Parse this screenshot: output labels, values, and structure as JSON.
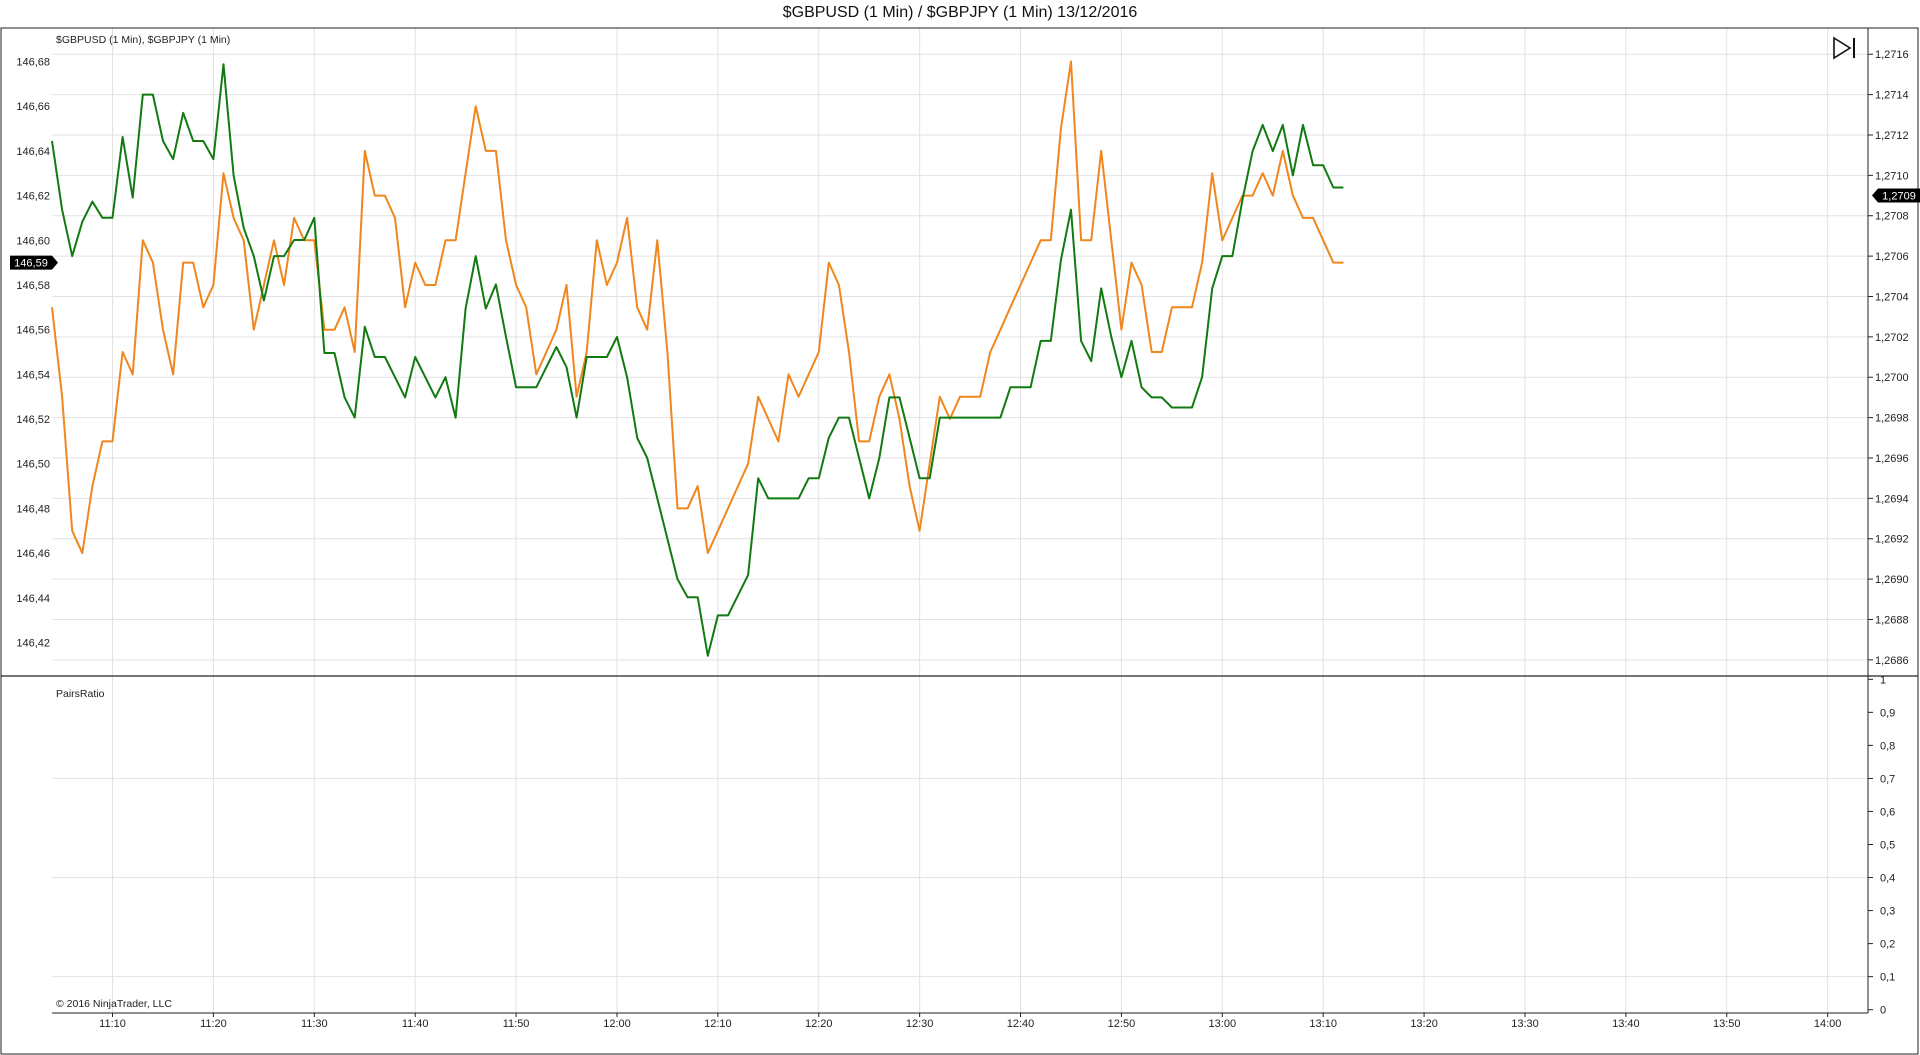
{
  "window": {
    "title": "$GBPUSD (1 Min) / $GBPJPY (1 Min)  13/12/2016"
  },
  "price_panel": {
    "label": "$GBPUSD (1 Min), $GBPJPY (1 Min)",
    "left_badge": "146,59",
    "right_badge": "1,2709",
    "icon": "scroll-to-end-icon"
  },
  "ratio_panel": {
    "label": "PairsRatio"
  },
  "copyright": "© 2016 NinjaTrader, LLC",
  "colors": {
    "gbpusd": "#117a11",
    "gbpjpy": "#f0861e",
    "badge_bg": "#000000",
    "grid": "#e2e2e2"
  },
  "chart_data": [
    {
      "type": "line",
      "title": "$GBPUSD (1 Min) / $GBPJPY (1 Min)  13/12/2016",
      "x_ticks": [
        "11:10",
        "11:20",
        "11:30",
        "11:40",
        "11:50",
        "12:00",
        "12:10",
        "12:20",
        "12:30",
        "12:40",
        "12:50",
        "13:00",
        "13:10",
        "13:20",
        "13:30",
        "13:40",
        "13:50",
        "14:00"
      ],
      "x_range": [
        "11:04",
        "14:04"
      ],
      "left_axis": {
        "ticks": [
          "146,42",
          "146,44",
          "146,46",
          "146,48",
          "146,50",
          "146,52",
          "146,54",
          "146,56",
          "146,58",
          "146,60",
          "146,62",
          "146,64",
          "146,66",
          "146,68"
        ],
        "range": [
          146.405,
          146.695
        ]
      },
      "right_axis": {
        "ticks": [
          "1,2686",
          "1,2688",
          "1,2690",
          "1,2692",
          "1,2694",
          "1,2696",
          "1,2698",
          "1,2700",
          "1,2702",
          "1,2704",
          "1,2706",
          "1,2708",
          "1,2710",
          "1,2712",
          "1,2714",
          "1,2716"
        ],
        "range": [
          1.26852,
          1.27173
        ]
      },
      "grid": true,
      "series": [
        {
          "name": "$GBPUSD (1 Min)",
          "axis": "right",
          "color": "#117a11",
          "x": [
            "11:04",
            "11:05",
            "11:06",
            "11:07",
            "11:08",
            "11:09",
            "11:10",
            "11:11",
            "11:12",
            "11:13",
            "11:14",
            "11:15",
            "11:16",
            "11:17",
            "11:18",
            "11:19",
            "11:20",
            "11:21",
            "11:22",
            "11:23",
            "11:24",
            "11:25",
            "11:26",
            "11:27",
            "11:28",
            "11:29",
            "11:30",
            "11:31",
            "11:32",
            "11:33",
            "11:34",
            "11:35",
            "11:36",
            "11:37",
            "11:38",
            "11:39",
            "11:40",
            "11:41",
            "11:42",
            "11:43",
            "11:44",
            "11:45",
            "11:46",
            "11:47",
            "11:48",
            "11:49",
            "11:50",
            "11:51",
            "11:52",
            "11:53",
            "11:54",
            "11:55",
            "11:56",
            "11:57",
            "11:58",
            "11:59",
            "12:00",
            "12:01",
            "12:02",
            "12:03",
            "12:04",
            "12:05",
            "12:06",
            "12:07",
            "12:08",
            "12:09",
            "12:10",
            "12:11",
            "12:12",
            "12:13",
            "12:14",
            "12:15",
            "12:16",
            "12:17",
            "12:18",
            "12:19",
            "12:20",
            "12:21",
            "12:22",
            "12:23",
            "12:24",
            "12:25",
            "12:26",
            "12:27",
            "12:28",
            "12:29",
            "12:30",
            "12:31",
            "12:32",
            "12:33",
            "12:34",
            "12:35",
            "12:36",
            "12:37",
            "12:38",
            "12:39",
            "12:40",
            "12:41",
            "12:42",
            "12:43",
            "12:44",
            "12:45",
            "12:46",
            "12:47",
            "12:48",
            "12:49",
            "12:50",
            "12:51",
            "12:52",
            "12:53",
            "12:54",
            "12:55",
            "12:56",
            "12:57",
            "12:58",
            "12:59",
            "13:00",
            "13:01",
            "13:02",
            "13:03",
            "13:04",
            "13:05",
            "13:06",
            "13:07",
            "13:08",
            "13:09",
            "13:10",
            "13:11",
            "13:12"
          ],
          "values": [
            1.27117,
            1.27083,
            1.2706,
            1.27077,
            1.27087,
            1.27079,
            1.27079,
            1.27119,
            1.27089,
            1.2714,
            1.2714,
            1.27117,
            1.27108,
            1.27131,
            1.27117,
            1.27117,
            1.27108,
            1.27155,
            1.271,
            1.27074,
            1.2706,
            1.27038,
            1.2706,
            1.2706,
            1.27068,
            1.27068,
            1.27079,
            1.27012,
            1.27012,
            1.2699,
            1.2698,
            1.27025,
            1.2701,
            1.2701,
            1.27,
            1.2699,
            1.2701,
            1.27,
            1.2699,
            1.27,
            1.2698,
            1.27034,
            1.2706,
            1.27034,
            1.27046,
            1.2702,
            1.26995,
            1.26995,
            1.26995,
            1.27005,
            1.27015,
            1.27005,
            1.2698,
            1.2701,
            1.2701,
            1.2701,
            1.2702,
            1.27,
            1.2697,
            1.2696,
            1.2694,
            1.2692,
            1.269,
            1.26891,
            1.26891,
            1.26862,
            1.26882,
            1.26882,
            1.26892,
            1.26902,
            1.2695,
            1.2694,
            1.2694,
            1.2694,
            1.2694,
            1.2695,
            1.2695,
            1.2697,
            1.2698,
            1.2698,
            1.2696,
            1.2694,
            1.2696,
            1.2699,
            1.2699,
            1.2697,
            1.2695,
            1.2695,
            1.2698,
            1.2698,
            1.2698,
            1.2698,
            1.2698,
            1.2698,
            1.2698,
            1.26995,
            1.26995,
            1.26995,
            1.27018,
            1.27018,
            1.27058,
            1.27083,
            1.27018,
            1.27008,
            1.27044,
            1.2702,
            1.27,
            1.27018,
            1.26995,
            1.2699,
            1.2699,
            1.26985,
            1.26985,
            1.26985,
            1.27,
            1.27044,
            1.2706,
            1.2706,
            1.27088,
            1.27112,
            1.27125,
            1.27112,
            1.27125,
            1.271,
            1.27125,
            1.27105,
            1.27105,
            1.27094,
            1.27094
          ]
        },
        {
          "name": "$GBPJPY (1 Min)",
          "axis": "left",
          "color": "#f0861e",
          "x": [
            "11:04",
            "11:05",
            "11:06",
            "11:07",
            "11:08",
            "11:09",
            "11:10",
            "11:11",
            "11:12",
            "11:13",
            "11:14",
            "11:15",
            "11:16",
            "11:17",
            "11:18",
            "11:19",
            "11:20",
            "11:21",
            "11:22",
            "11:23",
            "11:24",
            "11:25",
            "11:26",
            "11:27",
            "11:28",
            "11:29",
            "11:30",
            "11:31",
            "11:32",
            "11:33",
            "11:34",
            "11:35",
            "11:36",
            "11:37",
            "11:38",
            "11:39",
            "11:40",
            "11:41",
            "11:42",
            "11:43",
            "11:44",
            "11:45",
            "11:46",
            "11:47",
            "11:48",
            "11:49",
            "11:50",
            "11:51",
            "11:52",
            "11:53",
            "11:54",
            "11:55",
            "11:56",
            "11:57",
            "11:58",
            "11:59",
            "12:00",
            "12:01",
            "12:02",
            "12:03",
            "12:04",
            "12:05",
            "12:06",
            "12:07",
            "12:08",
            "12:09",
            "12:10",
            "12:11",
            "12:12",
            "12:13",
            "12:14",
            "12:15",
            "12:16",
            "12:17",
            "12:18",
            "12:19",
            "12:20",
            "12:21",
            "12:22",
            "12:23",
            "12:24",
            "12:25",
            "12:26",
            "12:27",
            "12:28",
            "12:29",
            "12:30",
            "12:31",
            "12:32",
            "12:33",
            "12:34",
            "12:35",
            "12:36",
            "12:37",
            "12:38",
            "12:39",
            "12:40",
            "12:41",
            "12:42",
            "12:43",
            "12:44",
            "12:45",
            "12:46",
            "12:47",
            "12:48",
            "12:49",
            "12:50",
            "12:51",
            "12:52",
            "12:53",
            "12:54",
            "12:55",
            "12:56",
            "12:57",
            "12:58",
            "12:59",
            "13:00",
            "13:01",
            "13:02",
            "13:03",
            "13:04",
            "13:05",
            "13:06",
            "13:07",
            "13:08",
            "13:09",
            "13:10",
            "13:11",
            "13:12"
          ],
          "values": [
            146.57,
            146.53,
            146.47,
            146.46,
            146.49,
            146.51,
            146.51,
            146.55,
            146.54,
            146.6,
            146.59,
            146.56,
            146.54,
            146.59,
            146.59,
            146.57,
            146.58,
            146.63,
            146.61,
            146.6,
            146.56,
            146.58,
            146.6,
            146.58,
            146.61,
            146.6,
            146.6,
            146.56,
            146.56,
            146.57,
            146.55,
            146.64,
            146.62,
            146.62,
            146.61,
            146.57,
            146.59,
            146.58,
            146.58,
            146.6,
            146.6,
            146.63,
            146.66,
            146.64,
            146.64,
            146.6,
            146.58,
            146.57,
            146.54,
            146.55,
            146.56,
            146.58,
            146.53,
            146.55,
            146.6,
            146.58,
            146.59,
            146.61,
            146.57,
            146.56,
            146.6,
            146.55,
            146.48,
            146.48,
            146.49,
            146.46,
            146.47,
            146.48,
            146.49,
            146.5,
            146.53,
            146.52,
            146.51,
            146.54,
            146.53,
            146.54,
            146.55,
            146.59,
            146.58,
            146.55,
            146.51,
            146.51,
            146.53,
            146.54,
            146.52,
            146.49,
            146.47,
            146.5,
            146.53,
            146.52,
            146.53,
            146.53,
            146.53,
            146.55,
            146.56,
            146.57,
            146.58,
            146.59,
            146.6,
            146.6,
            146.65,
            146.68,
            146.6,
            146.6,
            146.64,
            146.6,
            146.56,
            146.59,
            146.58,
            146.55,
            146.55,
            146.57,
            146.57,
            146.57,
            146.59,
            146.63,
            146.6,
            146.61,
            146.62,
            146.62,
            146.63,
            146.62,
            146.64,
            146.62,
            146.61,
            146.61,
            146.6,
            146.59,
            146.59
          ]
        }
      ]
    },
    {
      "type": "line",
      "title": "PairsRatio",
      "y_ticks": [
        "0",
        "0,1",
        "0,2",
        "0,3",
        "0,4",
        "0,5",
        "0,6",
        "0,7",
        "0,8",
        "0,9",
        "1"
      ],
      "y_range": [
        -0.01,
        1.01
      ],
      "grid": true,
      "series": []
    }
  ]
}
